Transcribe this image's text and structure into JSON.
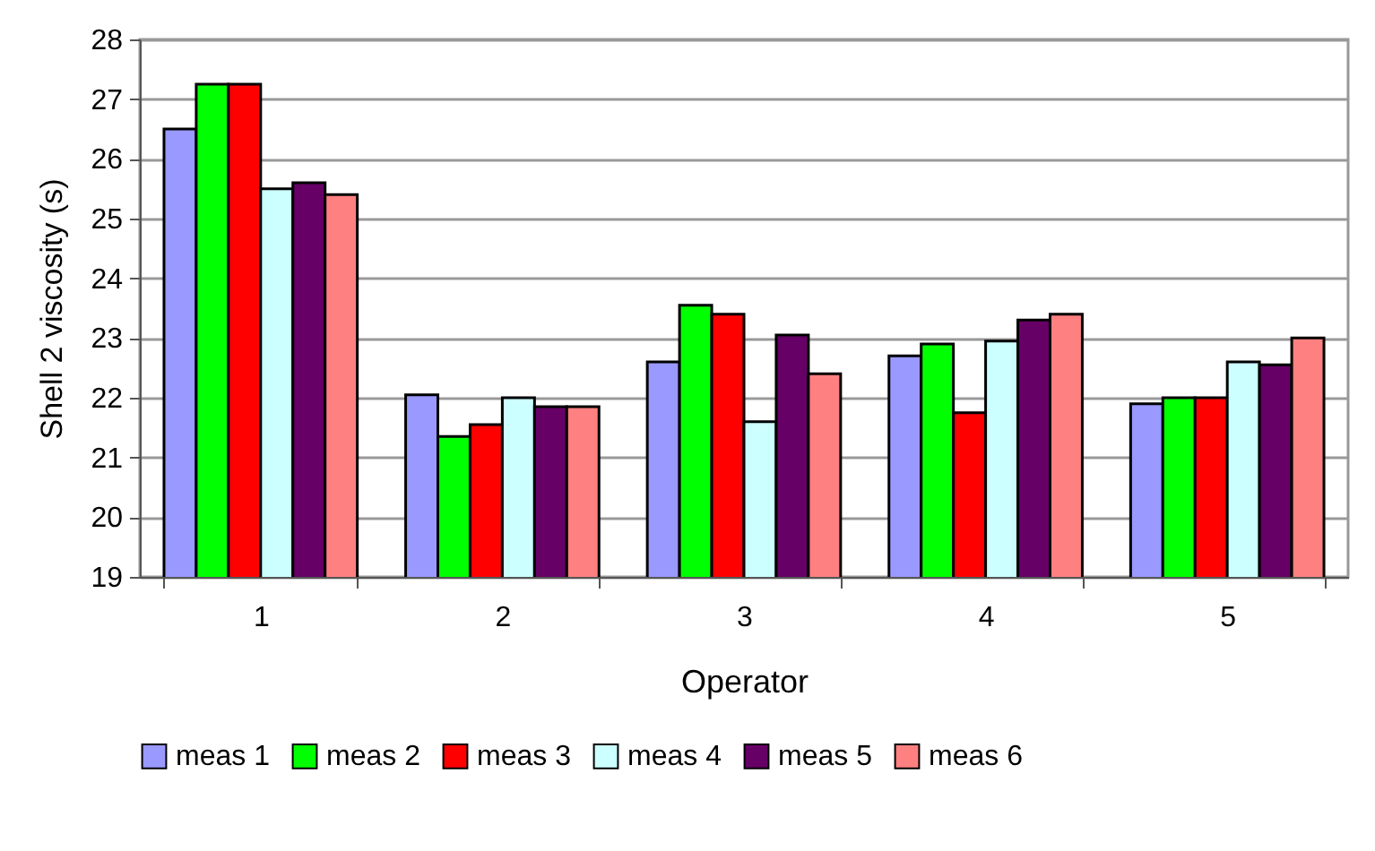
{
  "chart_data": {
    "type": "bar",
    "xlabel": "Operator",
    "ylabel": "Shell 2 viscosity (s)",
    "categories": [
      "1",
      "2",
      "3",
      "4",
      "5"
    ],
    "series": [
      {
        "name": "meas 1",
        "color": "#9999ff",
        "values": [
          26.5,
          22.05,
          22.6,
          22.7,
          21.9
        ]
      },
      {
        "name": "meas 2",
        "color": "#00ff00",
        "values": [
          27.25,
          21.35,
          23.55,
          22.9,
          22.0
        ]
      },
      {
        "name": "meas 3",
        "color": "#ff0000",
        "values": [
          27.25,
          21.55,
          23.4,
          21.75,
          22.0
        ]
      },
      {
        "name": "meas 4",
        "color": "#ccffff",
        "values": [
          25.5,
          22.0,
          21.6,
          22.95,
          22.6
        ]
      },
      {
        "name": "meas 5",
        "color": "#660066",
        "values": [
          25.6,
          21.85,
          23.05,
          23.3,
          22.55
        ]
      },
      {
        "name": "meas 6",
        "color": "#ff8080",
        "values": [
          25.4,
          21.85,
          22.4,
          23.4,
          23.0
        ]
      }
    ],
    "ylim": [
      19,
      28
    ],
    "yticks": [
      19,
      20,
      21,
      22,
      23,
      24,
      25,
      26,
      27,
      28
    ],
    "grid": "y",
    "legend": "bottom"
  }
}
